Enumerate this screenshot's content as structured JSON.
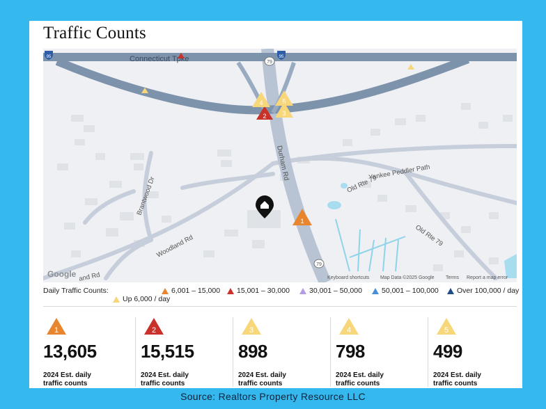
{
  "title": "Traffic Counts",
  "map": {
    "roads": {
      "highway": "Connecticut Tpke",
      "durham": "Durham Rd",
      "yankee": "Yankee Peddler Path",
      "old_rte_a": "Old Rte 79",
      "old_rte_b": "Old Rte 79",
      "brantwood": "Brantwood Dr",
      "woodland": "Woodland Rd",
      "partial_road": "and Rd"
    },
    "shields": {
      "i95_left": "95",
      "i95_right": "95",
      "rt79_top": "79",
      "rt79_bottom": "79"
    },
    "attribution": {
      "logo": "Google",
      "shortcuts": "Keyboard shortcuts",
      "mapdata": "Map Data ©2025 Google",
      "terms": "Terms",
      "report": "Report a map error"
    },
    "markers": [
      {
        "label": "1",
        "category": "6001-15000"
      },
      {
        "label": "2",
        "category": "15001-30000"
      },
      {
        "label": "3",
        "category": "up-6000"
      },
      {
        "label": "4",
        "category": "up-6000"
      },
      {
        "label": "5",
        "category": "up-6000"
      }
    ],
    "subject_icon": "home-pin-icon"
  },
  "legend": {
    "label": "Daily Traffic Counts:",
    "items": [
      {
        "text": "6,001 – 15,000",
        "color": "#e8862f"
      },
      {
        "text": "15,001 – 30,000",
        "color": "#c9322a"
      },
      {
        "text": "30,001 – 50,000",
        "color": "#b49be6"
      },
      {
        "text": "50,001 – 100,000",
        "color": "#4a8fd6"
      },
      {
        "text": "Over 100,000 / day",
        "color": "#1f4e86"
      },
      {
        "text": "Up 6,000 / day",
        "color": "#f7d77a"
      }
    ]
  },
  "stats": [
    {
      "badge": "1",
      "color": "#e8862f",
      "value": "13,605",
      "caption_line1": "2024 Est. daily",
      "caption_line2": "traffic counts"
    },
    {
      "badge": "2",
      "color": "#c9322a",
      "value": "15,515",
      "caption_line1": "2024 Est. daily",
      "caption_line2": "traffic counts"
    },
    {
      "badge": "3",
      "color": "#f7d77a",
      "value": "898",
      "caption_line1": "2024 Est. daily",
      "caption_line2": "traffic counts"
    },
    {
      "badge": "4",
      "color": "#f7d77a",
      "value": "798",
      "caption_line1": "2024 Est. daily",
      "caption_line2": "traffic counts"
    },
    {
      "badge": "5",
      "color": "#f7d77a",
      "value": "499",
      "caption_line1": "2024 Est. daily",
      "caption_line2": "traffic counts"
    }
  ],
  "source": "Source: Realtors Property Resource LLC"
}
